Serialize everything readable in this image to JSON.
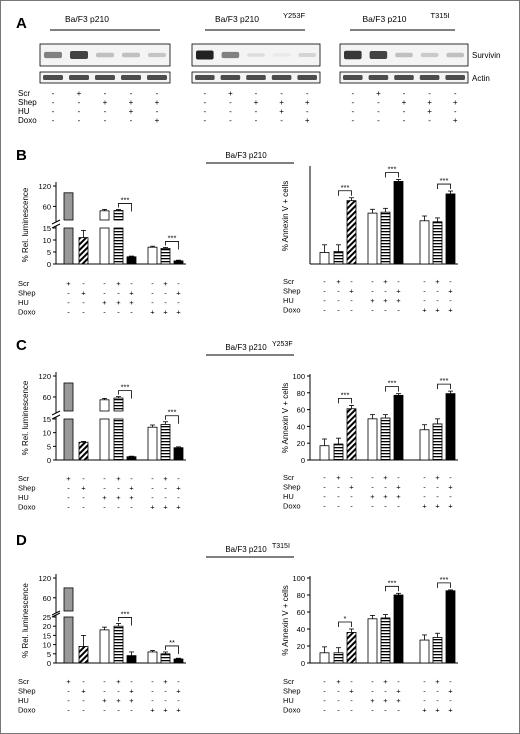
{
  "panel_letters": [
    "A",
    "B",
    "C",
    "D"
  ],
  "blot": {
    "cell_lines": [
      {
        "name": "Ba/F3 p210",
        "mutation": ""
      },
      {
        "name": "Ba/F3 p210",
        "mutation": "Y253F"
      },
      {
        "name": "Ba/F3 p210",
        "mutation": "T315I"
      }
    ],
    "band_labels": [
      "Survivin",
      "Actin"
    ],
    "row_labels": [
      "Scr",
      "Shep",
      "HU",
      "Doxo"
    ],
    "lanes": [
      [
        "-",
        "+",
        "-",
        "-",
        "-"
      ],
      [
        "-",
        "-",
        "+",
        "+",
        "+"
      ],
      [
        "-",
        "-",
        "-",
        "+",
        "-"
      ],
      [
        "-",
        "-",
        "-",
        "-",
        "+"
      ]
    ],
    "survivin_intensity": [
      [
        0.55,
        0.85,
        0.25,
        0.25,
        0.22
      ],
      [
        1.0,
        0.55,
        0.1,
        0.05,
        0.15
      ],
      [
        0.9,
        0.85,
        0.25,
        0.2,
        0.25
      ]
    ],
    "actin_intensity": [
      [
        0.8,
        0.8,
        0.8,
        0.8,
        0.8
      ],
      [
        0.8,
        0.8,
        0.8,
        0.8,
        0.8
      ],
      [
        0.8,
        0.8,
        0.8,
        0.8,
        0.8
      ]
    ]
  },
  "treatment_rows": {
    "labels": [
      "Scr",
      "Shep",
      "HU",
      "Doxo"
    ],
    "signs": [
      [
        "+",
        "-",
        "-",
        "+",
        "-",
        "-",
        "+",
        "-"
      ],
      [
        "-",
        "+",
        "-",
        "-",
        "+",
        "-",
        "-",
        "+"
      ],
      [
        "-",
        "-",
        "+",
        "+",
        "+",
        "-",
        "-",
        "-"
      ],
      [
        "-",
        "-",
        "-",
        "-",
        "-",
        "+",
        "+",
        "+"
      ]
    ]
  },
  "chart_data": [
    {
      "panel": "B",
      "title": "Ba/F3 p210",
      "title_sup": "",
      "type": "bar",
      "ylabel": "% Rel. luminescence",
      "axis": "broken",
      "ticks_top": [
        60,
        120
      ],
      "ticks_bottom": [
        0,
        5,
        10,
        15
      ],
      "values": [
        100,
        11,
        47,
        48,
        3,
        7,
        6.5,
        1.3
      ],
      "errors": [
        0,
        3,
        4,
        3,
        0.3,
        0.4,
        0.4,
        0.3
      ],
      "patterns": [
        "grey",
        "diag",
        "white",
        "hstripe",
        "black",
        "white",
        "hstripe",
        "black"
      ],
      "sig": [
        {
          "from": 3,
          "to": 4,
          "label": "***"
        },
        {
          "from": 6,
          "to": 7,
          "label": "***"
        }
      ]
    },
    {
      "panel": "B",
      "title": "",
      "title_sup": "",
      "type": "bar",
      "ylabel": "% Annexin V + cells",
      "axis": "linear",
      "ylim": [
        0,
        100
      ],
      "ticks": [],
      "values": [
        12,
        13,
        66,
        53,
        54,
        86,
        45,
        44,
        73
      ],
      "errors": [
        8,
        7,
        3,
        4,
        4,
        2,
        5,
        4,
        3
      ],
      "patterns": [
        "white",
        "hstripe",
        "diag",
        "white",
        "hstripe",
        "black",
        "white",
        "hstripe",
        "black"
      ],
      "sig": [
        {
          "from": 1,
          "to": 2,
          "label": "***"
        },
        {
          "from": 4,
          "to": 5,
          "label": "***"
        },
        {
          "from": 7,
          "to": 8,
          "label": "***"
        }
      ]
    },
    {
      "panel": "C",
      "title": "Ba/F3 p210",
      "title_sup": "Y253F",
      "type": "bar",
      "ylabel": "% Rel. luminescence",
      "axis": "broken",
      "ticks_top": [
        60,
        120
      ],
      "ticks_bottom": [
        0,
        5,
        10,
        15
      ],
      "values": [
        100,
        6.5,
        52,
        57,
        1.2,
        12,
        13,
        4.5
      ],
      "errors": [
        0,
        0.3,
        4,
        4,
        0.2,
        0.8,
        1,
        0.3
      ],
      "patterns": [
        "grey",
        "diag",
        "white",
        "hstripe",
        "black",
        "white",
        "hstripe",
        "black"
      ],
      "sig": [
        {
          "from": 3,
          "to": 4,
          "label": "***"
        },
        {
          "from": 6,
          "to": 7,
          "label": "***"
        }
      ]
    },
    {
      "panel": "C",
      "title": "",
      "title_sup": "",
      "type": "bar",
      "ylabel": "% Annexin V + cells",
      "axis": "linear",
      "ylim": [
        0,
        100
      ],
      "ticks": [
        0,
        20,
        40,
        60,
        80,
        100
      ],
      "values": [
        17,
        19,
        61,
        49,
        50,
        77,
        36,
        43,
        79
      ],
      "errors": [
        8,
        7,
        4,
        5,
        4,
        2,
        6,
        6,
        3
      ],
      "patterns": [
        "white",
        "hstripe",
        "diag",
        "white",
        "hstripe",
        "black",
        "white",
        "hstripe",
        "black"
      ],
      "sig": [
        {
          "from": 1,
          "to": 2,
          "label": "***"
        },
        {
          "from": 4,
          "to": 5,
          "label": "***"
        },
        {
          "from": 7,
          "to": 8,
          "label": "***"
        }
      ]
    },
    {
      "panel": "D",
      "title": "Ba/F3 p210",
      "title_sup": "T315I",
      "type": "bar",
      "ylabel": "% Rel. luminescence",
      "axis": "broken",
      "ticks_top": [
        60,
        120
      ],
      "ticks_bottom": [
        0,
        5,
        10,
        15,
        20,
        25
      ],
      "values": [
        90,
        9,
        18,
        20,
        4,
        6,
        5,
        2.2
      ],
      "errors": [
        0,
        6,
        1.5,
        1.5,
        2,
        0.8,
        1,
        0.4
      ],
      "patterns": [
        "grey",
        "diag",
        "white",
        "hstripe",
        "black",
        "white",
        "hstripe",
        "black"
      ],
      "sig": [
        {
          "from": 3,
          "to": 4,
          "label": "***"
        },
        {
          "from": 6,
          "to": 7,
          "label": "**"
        }
      ]
    },
    {
      "panel": "D",
      "title": "",
      "title_sup": "",
      "type": "bar",
      "ylabel": "% Annexin V + cells",
      "axis": "linear",
      "ylim": [
        0,
        100
      ],
      "ticks": [
        0,
        20,
        40,
        60,
        80,
        100
      ],
      "values": [
        12,
        12,
        36,
        52,
        53,
        80,
        27,
        30,
        85
      ],
      "errors": [
        7,
        6,
        4,
        4,
        4,
        2,
        6,
        5,
        1
      ],
      "patterns": [
        "white",
        "hstripe",
        "diag",
        "white",
        "hstripe",
        "black",
        "white",
        "hstripe",
        "black"
      ],
      "sig": [
        {
          "from": 1,
          "to": 2,
          "label": "*"
        },
        {
          "from": 4,
          "to": 5,
          "label": "***"
        },
        {
          "from": 7,
          "to": 8,
          "label": "***"
        }
      ]
    }
  ],
  "annexin_rows": {
    "labels": [
      "Scr",
      "Shep",
      "HU",
      "Doxo"
    ],
    "signs": [
      [
        "-",
        "+",
        "-",
        "-",
        "+",
        "-",
        "-",
        "+",
        "-"
      ],
      [
        "-",
        "-",
        "+",
        "-",
        "-",
        "+",
        "-",
        "-",
        "+"
      ],
      [
        "-",
        "-",
        "-",
        "+",
        "+",
        "+",
        "-",
        "-",
        "-"
      ],
      [
        "-",
        "-",
        "-",
        "-",
        "-",
        "-",
        "+",
        "+",
        "+"
      ]
    ]
  },
  "colors": {
    "grey_bar": "#999999",
    "black_bar": "#000000",
    "band": "#222222"
  }
}
